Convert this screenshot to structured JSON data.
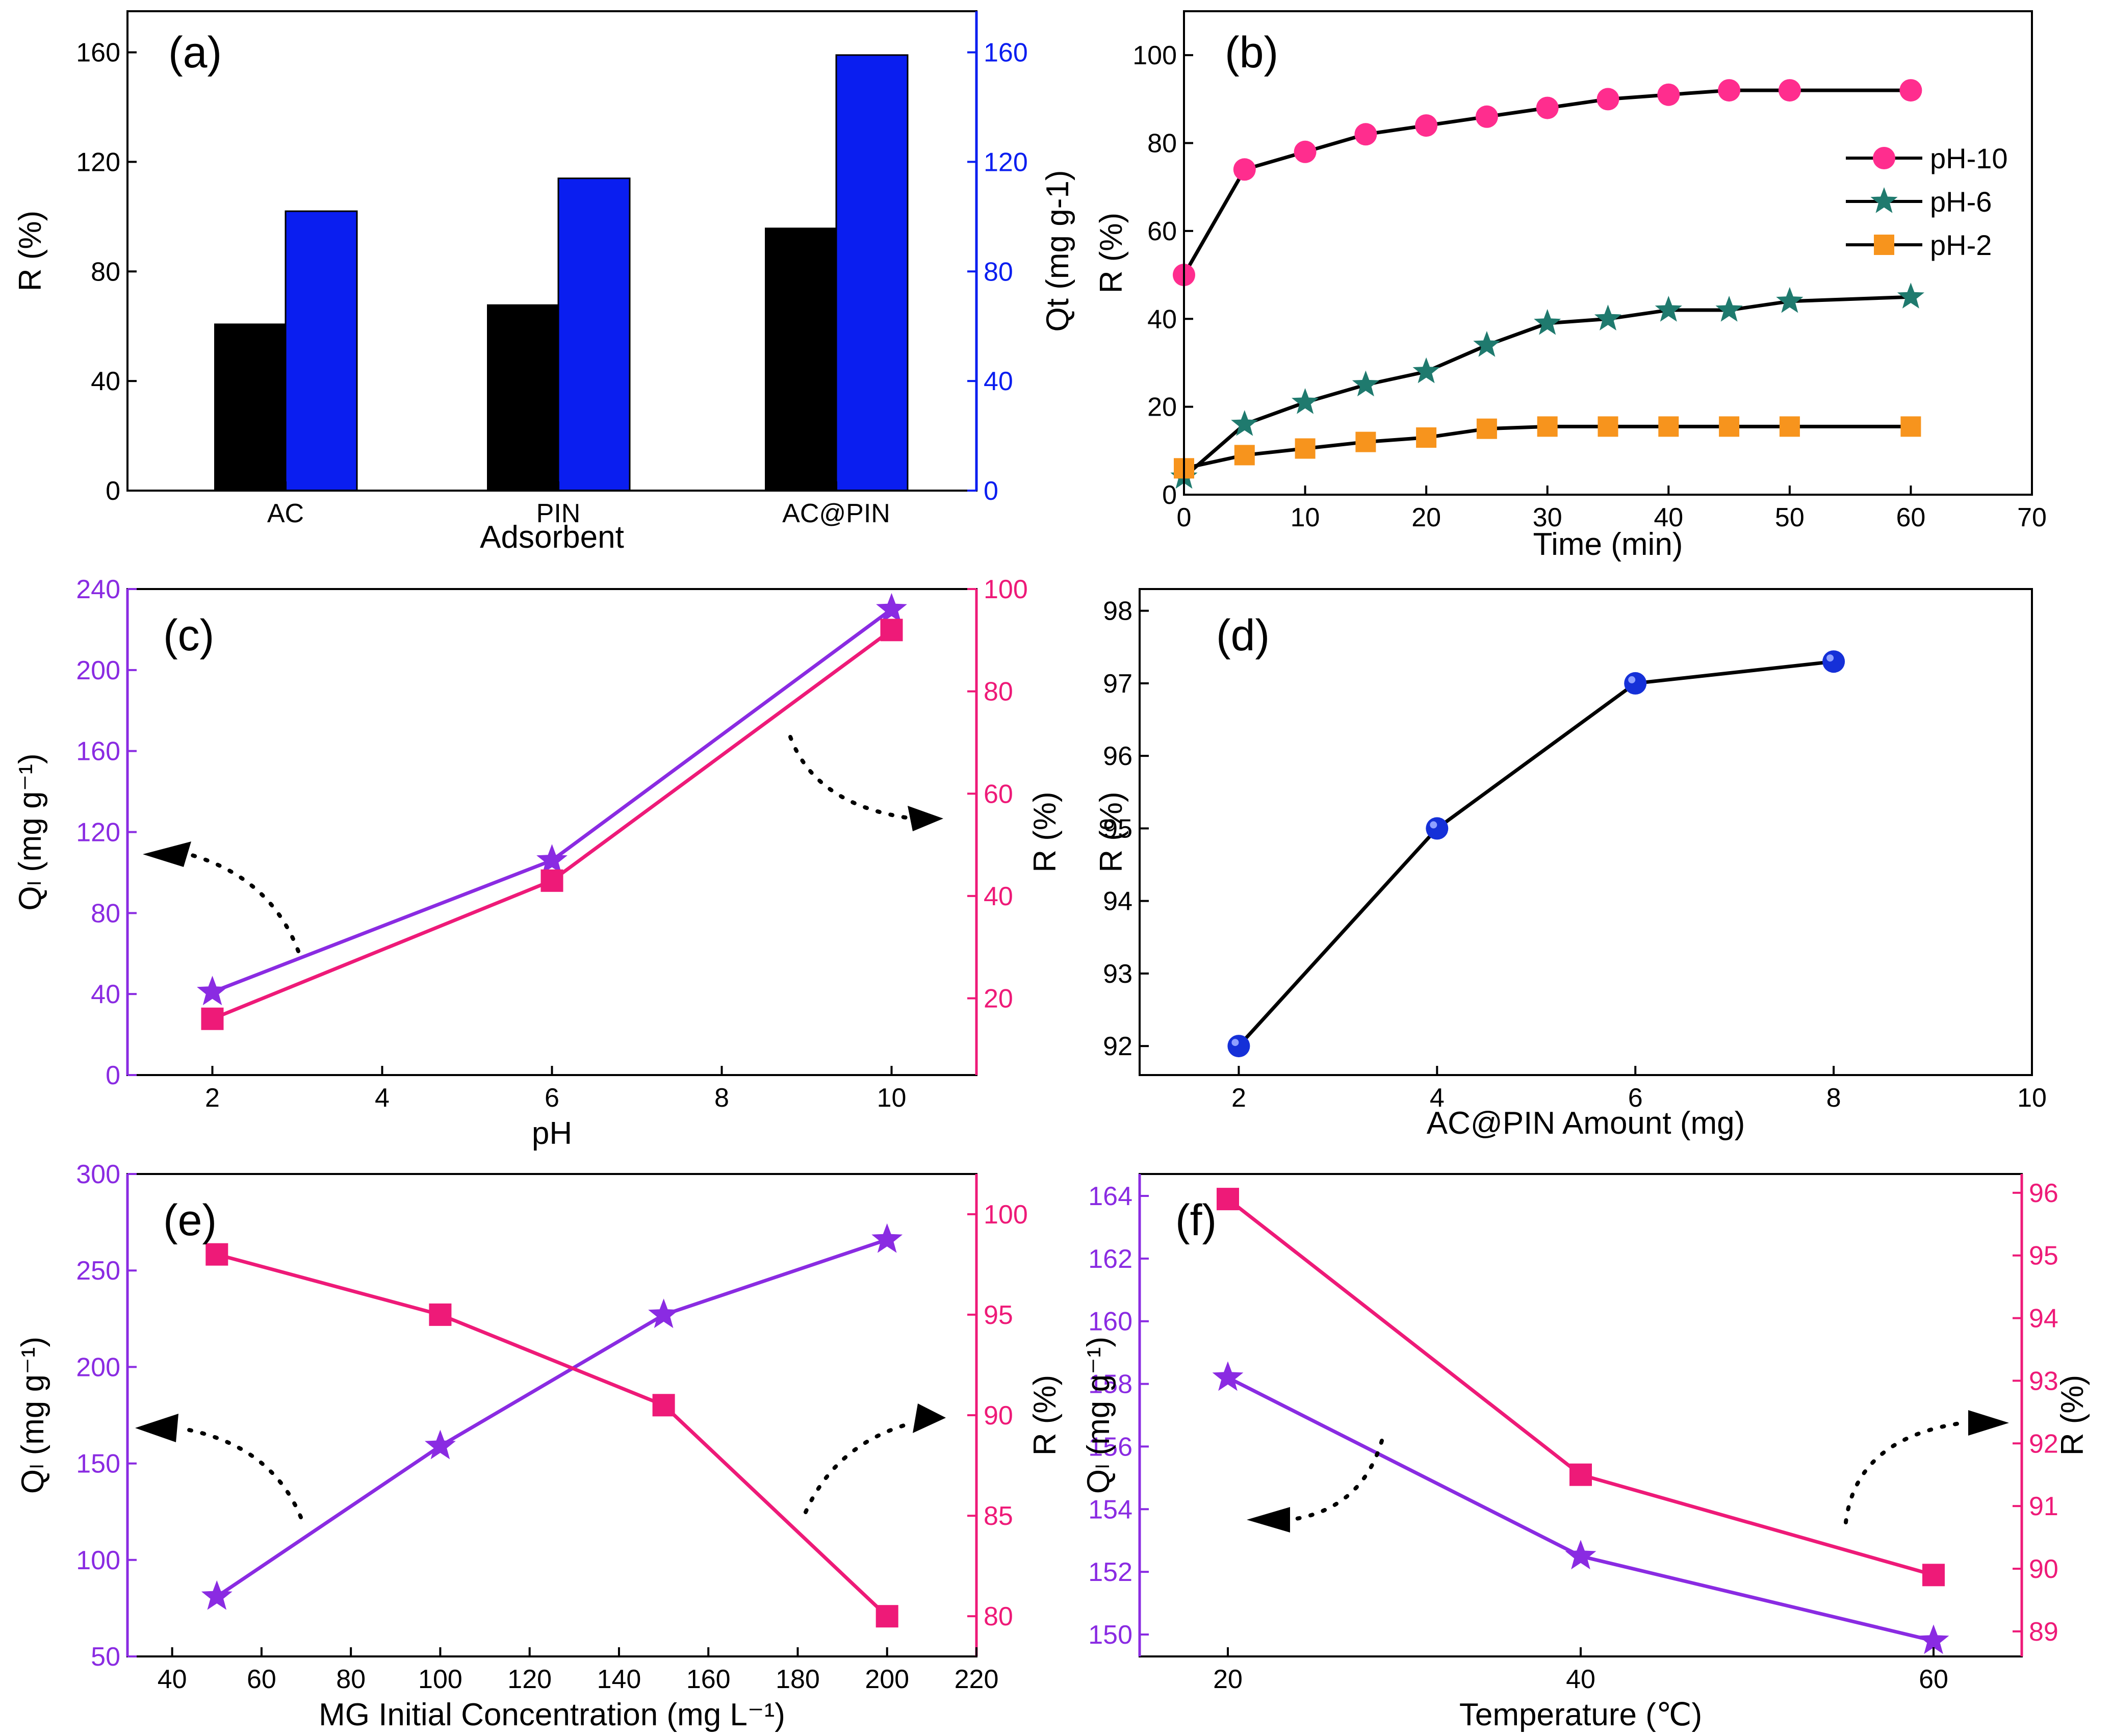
{
  "colors": {
    "black": "#000000",
    "blue": "#0a1ef0",
    "purple": "#8a2be2",
    "pink": "#ee1a78",
    "teal": "#1f7a6e",
    "orange": "#f7941d",
    "pinkMarker": "#ff2d8e",
    "sphereBlue": "#1530d8"
  },
  "chart_data": [
    {
      "type": "bar",
      "label": "(a)",
      "xlabel": "Adsorbent",
      "ylabel": "R (%)",
      "ylabel2": "Qt (mg g-1)",
      "categories": [
        "AC",
        "PIN",
        "AC@PIN"
      ],
      "ylim": [
        0,
        175
      ],
      "yticks": [
        0,
        40,
        80,
        120,
        160
      ],
      "ylim2": [
        0,
        175
      ],
      "yticks2": [
        0,
        40,
        80,
        120,
        160
      ],
      "series": [
        {
          "name": "R",
          "axis": "left",
          "values": [
            61,
            68,
            96
          ]
        },
        {
          "name": "Qt",
          "axis": "right",
          "values": [
            102,
            114,
            159
          ]
        }
      ]
    },
    {
      "type": "line",
      "label": "(b)",
      "xlabel": "Time (min)",
      "ylabel": "R (%)",
      "xlim": [
        0,
        70
      ],
      "xticks": [
        0,
        10,
        20,
        30,
        40,
        50,
        60,
        70
      ],
      "ylim": [
        0,
        110
      ],
      "yticks": [
        0,
        20,
        40,
        60,
        80,
        100
      ],
      "legend": [
        "pH-10",
        "pH-6",
        "pH-2"
      ],
      "x": [
        0,
        5,
        10,
        15,
        20,
        25,
        30,
        35,
        40,
        45,
        50,
        60
      ],
      "series": [
        {
          "name": "pH-10",
          "values": [
            50,
            74,
            78,
            82,
            84,
            86,
            88,
            90,
            91,
            92,
            92,
            92
          ]
        },
        {
          "name": "pH-6",
          "values": [
            4,
            16,
            21,
            25,
            28,
            34,
            39,
            40,
            42,
            42,
            44,
            45
          ]
        },
        {
          "name": "pH-2",
          "values": [
            6,
            9,
            10.5,
            12,
            13,
            15,
            15.5,
            15.5,
            15.5,
            15.5,
            15.5,
            15.5
          ]
        }
      ]
    },
    {
      "type": "line",
      "label": "(c)",
      "xlabel": "pH",
      "ylabel": "Qₗ (mg g⁻¹)",
      "ylabel2": "R (%)",
      "xlim": [
        1,
        11
      ],
      "xticks": [
        2,
        4,
        6,
        8,
        10
      ],
      "ylim": [
        0,
        240
      ],
      "yticks": [
        0,
        40,
        80,
        120,
        160,
        200,
        240
      ],
      "ylim2": [
        5,
        100
      ],
      "yticks2": [
        20,
        40,
        60,
        80,
        100
      ],
      "x": [
        2,
        6,
        10
      ],
      "series": [
        {
          "name": "Q",
          "axis": "left",
          "values": [
            41,
            106,
            230
          ]
        },
        {
          "name": "R",
          "axis": "right",
          "values": [
            16,
            43,
            92
          ]
        }
      ]
    },
    {
      "type": "line",
      "label": "(d)",
      "xlabel": "AC@PIN Amount (mg)",
      "ylabel": "R (%)",
      "xlim": [
        1,
        10
      ],
      "xticks": [
        2,
        4,
        6,
        8,
        10
      ],
      "ylim": [
        91.6,
        98.3
      ],
      "yticks": [
        92,
        93,
        94,
        95,
        96,
        97,
        98
      ],
      "x": [
        2,
        4,
        6,
        8
      ],
      "series": [
        {
          "name": "R",
          "values": [
            92,
            95,
            97,
            97.3
          ]
        }
      ]
    },
    {
      "type": "line",
      "label": "(e)",
      "xlabel": "MG Initial Concentration (mg L⁻¹)",
      "ylabel": "Qₗ (mg g⁻¹)",
      "ylabel2": "R (%)",
      "xlim": [
        30,
        220
      ],
      "xticks": [
        40,
        60,
        80,
        100,
        120,
        140,
        160,
        180,
        200,
        220
      ],
      "ylim": [
        50,
        300
      ],
      "yticks": [
        50,
        100,
        150,
        200,
        250,
        300
      ],
      "ylim2": [
        78,
        102
      ],
      "yticks2": [
        80,
        85,
        90,
        95,
        100
      ],
      "x": [
        50,
        100,
        150,
        200
      ],
      "series": [
        {
          "name": "Q",
          "axis": "left",
          "values": [
            81,
            159,
            227,
            266
          ]
        },
        {
          "name": "R",
          "axis": "right",
          "values": [
            98,
            95,
            90.5,
            80
          ]
        }
      ]
    },
    {
      "type": "line",
      "label": "(f)",
      "xlabel": "Temperature (℃)",
      "ylabel": "Qₗ (mg g⁻¹)",
      "ylabel2": "R (%)",
      "xlim": [
        15,
        65
      ],
      "xticks": [
        20,
        40,
        60
      ],
      "ylim": [
        149.3,
        164.7
      ],
      "yticks": [
        150,
        152,
        154,
        156,
        158,
        160,
        162,
        164
      ],
      "ylim2": [
        88.6,
        96.3
      ],
      "yticks2": [
        89,
        90,
        91,
        92,
        93,
        94,
        95,
        96
      ],
      "x": [
        20,
        40,
        60
      ],
      "series": [
        {
          "name": "Q",
          "axis": "left",
          "values": [
            158.2,
            152.5,
            149.8
          ]
        },
        {
          "name": "R",
          "axis": "right",
          "values": [
            95.9,
            91.5,
            89.9
          ]
        }
      ]
    }
  ]
}
